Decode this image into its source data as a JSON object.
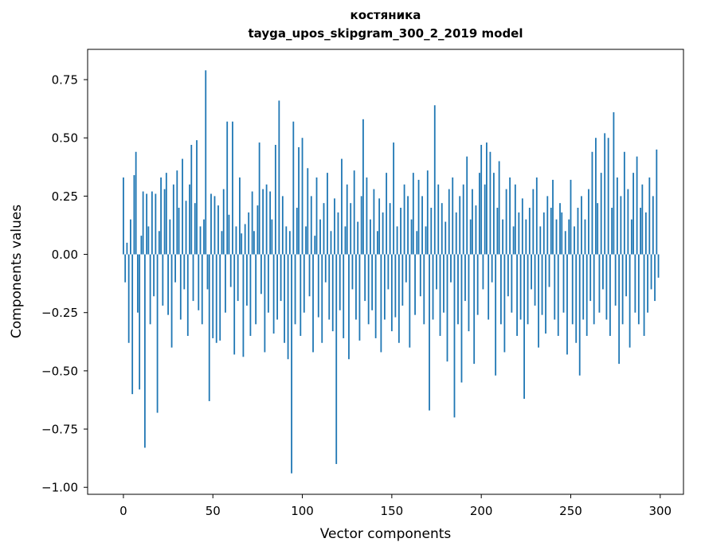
{
  "figure": {
    "title_line1": "костяника",
    "title_line2": "tayga_upos_skipgram_300_2_2019 model"
  },
  "chart_data": {
    "type": "bar",
    "title": "костяника",
    "subtitle": "tayga_upos_skipgram_300_2_2019 model",
    "xlabel": "Vector components",
    "ylabel": "Components values",
    "bar_color": "#1f77b4",
    "grid": false,
    "legend": false,
    "xlim": [
      -20,
      313
    ],
    "ylim": [
      -1.03,
      0.88
    ],
    "xticks": [
      0,
      50,
      100,
      150,
      200,
      250,
      300
    ],
    "yticks": [
      -1.0,
      -0.75,
      -0.5,
      -0.25,
      0.0,
      0.25,
      0.5,
      0.75
    ],
    "x_is_component_index": true,
    "n_components": 300,
    "values": [
      0.33,
      -0.12,
      0.05,
      -0.38,
      0.15,
      -0.6,
      0.34,
      0.44,
      -0.25,
      -0.58,
      0.08,
      0.27,
      -0.83,
      0.26,
      0.12,
      -0.3,
      0.27,
      -0.18,
      0.26,
      -0.68,
      0.1,
      0.33,
      -0.22,
      0.28,
      0.35,
      -0.26,
      0.15,
      -0.4,
      0.3,
      -0.12,
      0.36,
      0.2,
      -0.28,
      0.41,
      -0.15,
      0.23,
      -0.35,
      0.3,
      0.47,
      -0.2,
      0.22,
      0.49,
      -0.24,
      0.12,
      -0.3,
      0.15,
      0.79,
      -0.15,
      -0.63,
      0.26,
      -0.36,
      0.25,
      -0.38,
      0.21,
      -0.37,
      0.1,
      0.28,
      -0.25,
      0.57,
      0.17,
      -0.14,
      0.57,
      -0.43,
      0.12,
      -0.2,
      0.33,
      0.09,
      -0.44,
      0.13,
      -0.22,
      0.18,
      -0.35,
      0.27,
      0.1,
      -0.3,
      0.21,
      0.48,
      -0.17,
      0.28,
      -0.42,
      0.3,
      -0.25,
      0.27,
      0.15,
      -0.34,
      0.47,
      -0.28,
      0.66,
      -0.2,
      0.25,
      -0.38,
      0.12,
      -0.45,
      0.1,
      -0.94,
      0.57,
      -0.3,
      0.2,
      0.46,
      -0.35,
      0.5,
      -0.25,
      0.12,
      0.37,
      -0.18,
      0.25,
      -0.42,
      0.08,
      0.33,
      -0.27,
      0.15,
      -0.38,
      0.22,
      -0.12,
      0.35,
      -0.28,
      0.1,
      -0.33,
      0.24,
      -0.9,
      0.18,
      -0.24,
      0.41,
      -0.36,
      0.12,
      0.3,
      -0.45,
      0.22,
      -0.15,
      0.36,
      -0.28,
      0.14,
      -0.37,
      0.25,
      0.58,
      -0.2,
      0.33,
      -0.3,
      0.15,
      -0.24,
      0.28,
      -0.36,
      0.1,
      0.24,
      -0.42,
      0.18,
      -0.28,
      0.35,
      -0.15,
      0.22,
      -0.33,
      0.48,
      -0.27,
      0.12,
      -0.38,
      0.2,
      -0.22,
      0.3,
      -0.12,
      0.25,
      -0.4,
      0.15,
      0.35,
      -0.26,
      0.1,
      0.32,
      -0.18,
      0.25,
      -0.3,
      0.12,
      0.36,
      -0.67,
      0.2,
      -0.28,
      0.64,
      -0.15,
      0.3,
      -0.35,
      0.22,
      -0.25,
      0.14,
      -0.46,
      0.28,
      -0.12,
      0.33,
      -0.7,
      0.18,
      -0.3,
      0.25,
      -0.55,
      0.3,
      -0.2,
      0.42,
      -0.33,
      0.15,
      0.28,
      -0.47,
      0.21,
      -0.26,
      0.35,
      0.47,
      -0.15,
      0.3,
      0.48,
      -0.28,
      0.44,
      -0.12,
      0.35,
      -0.52,
      0.2,
      0.4,
      -0.3,
      0.15,
      -0.42,
      0.28,
      -0.18,
      0.33,
      -0.25,
      0.12,
      0.3,
      -0.35,
      0.18,
      -0.28,
      0.24,
      -0.62,
      0.15,
      -0.3,
      0.2,
      -0.15,
      0.28,
      -0.22,
      0.33,
      -0.4,
      0.12,
      -0.26,
      0.18,
      -0.34,
      0.25,
      -0.14,
      0.2,
      0.32,
      -0.28,
      0.15,
      -0.35,
      0.22,
      0.18,
      -0.25,
      0.1,
      -0.43,
      0.15,
      0.32,
      -0.3,
      0.12,
      -0.38,
      0.2,
      -0.52,
      0.25,
      -0.28,
      0.15,
      -0.35,
      0.28,
      -0.2,
      0.44,
      -0.3,
      0.5,
      0.22,
      -0.25,
      0.35,
      -0.15,
      0.52,
      -0.28,
      0.5,
      -0.35,
      0.2,
      0.61,
      -0.22,
      0.33,
      -0.47,
      0.25,
      -0.3,
      0.44,
      -0.18,
      0.28,
      -0.4,
      0.15,
      0.35,
      -0.25,
      0.42,
      -0.3,
      0.2,
      0.3,
      -0.35,
      0.18,
      -0.25,
      0.33,
      -0.15,
      0.25,
      -0.2,
      0.45,
      -0.1
    ]
  }
}
